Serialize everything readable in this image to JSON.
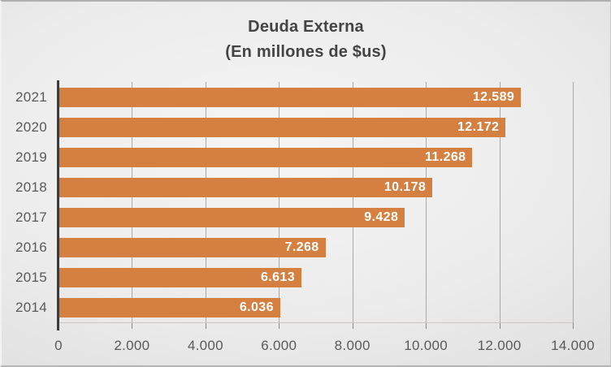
{
  "chart_data": {
    "type": "bar",
    "orientation": "horizontal",
    "title": "Deuda Externa",
    "subtitle": "(En millones de $us)",
    "categories": [
      "2021",
      "2020",
      "2019",
      "2018",
      "2017",
      "2016",
      "2015",
      "2014"
    ],
    "values": [
      12589,
      12172,
      11268,
      10178,
      9428,
      7268,
      6613,
      6036
    ],
    "value_labels": [
      "12.589",
      "12.172",
      "11.268",
      "10.178",
      "9.428",
      "7.268",
      "6.613",
      "6.036"
    ],
    "x_ticks": [
      0,
      2000,
      4000,
      6000,
      8000,
      10000,
      12000,
      14000
    ],
    "x_tick_labels": [
      "0",
      "2.000",
      "4.000",
      "6.000",
      "8.000",
      "10.000",
      "12.000",
      "14.000"
    ],
    "xlim": [
      0,
      14000
    ],
    "grid": true,
    "legend": false,
    "colors": {
      "bar": "#D58040",
      "gridline": "#A9A9A9",
      "axis_line": "#3C3C3C",
      "tick_text": "#595959",
      "title_text": "#444444",
      "value_label_text": "#FFFFFF"
    }
  }
}
